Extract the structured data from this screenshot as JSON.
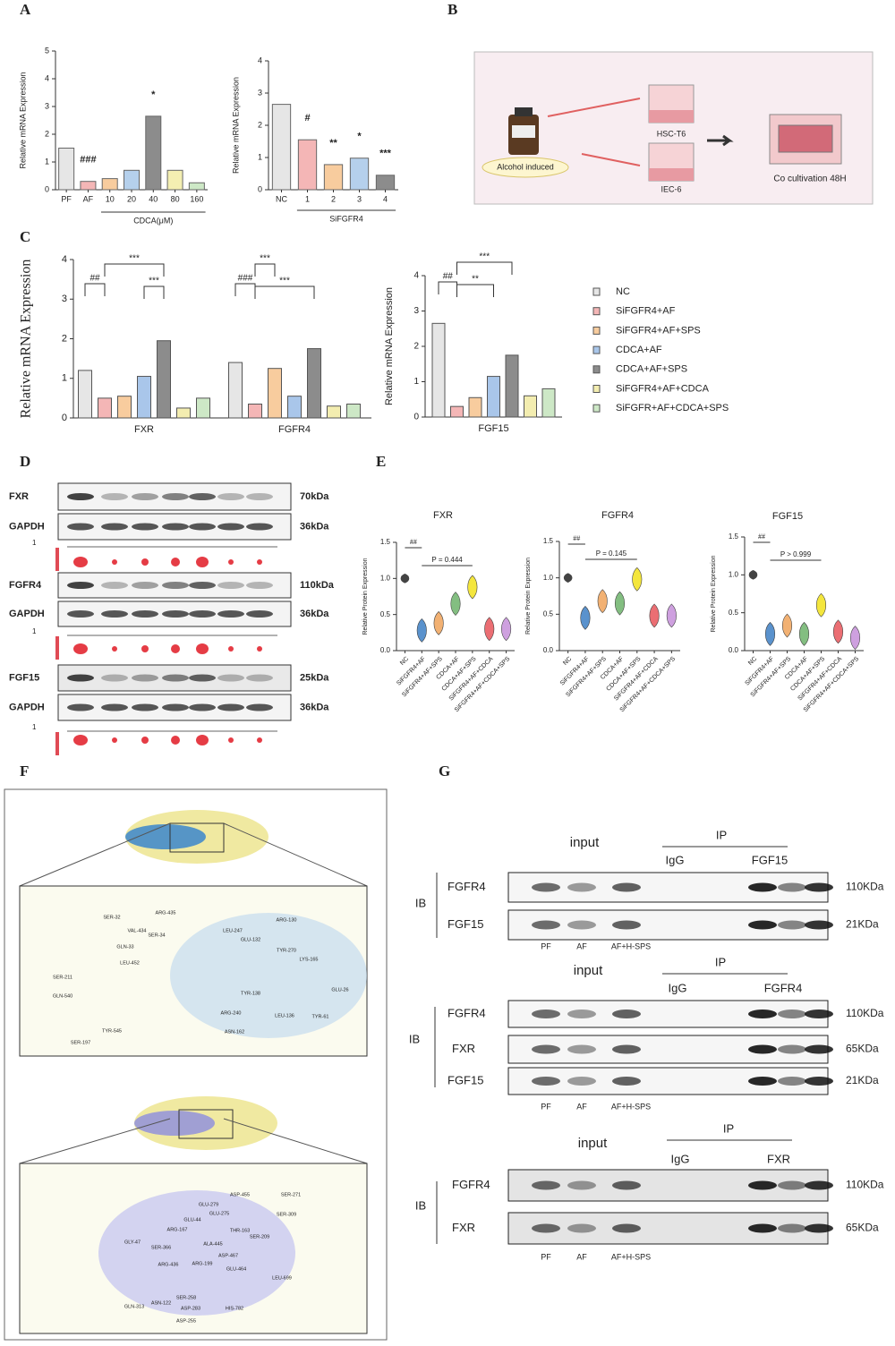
{
  "panel_labels": [
    "A",
    "B",
    "C",
    "D",
    "E",
    "F",
    "G"
  ],
  "chart_data": [
    {
      "type": "bar",
      "y_label": "Relative mRNA Expression",
      "categories": [
        "PF",
        "AF",
        "10",
        "20",
        "40",
        "80",
        "160"
      ],
      "values": [
        1.5,
        0.3,
        0.4,
        0.7,
        2.65,
        0.7,
        0.25
      ],
      "colors": [
        "#e6e6e6",
        "#f4b6b6",
        "#f8cc9e",
        "#b5d0ec",
        "#8c8c8c",
        "#f4efb2",
        "#cde8c6"
      ],
      "annotations": [
        null,
        "###",
        null,
        null,
        "*",
        null,
        null
      ],
      "x_group_label": "CDCA(μM)",
      "ylim": [
        0,
        5
      ],
      "yticks": [
        0,
        1,
        2,
        3,
        4,
        5
      ]
    },
    {
      "type": "bar",
      "y_label": "Relative mRNA Expression",
      "categories": [
        "NC",
        "1",
        "2",
        "3",
        "4"
      ],
      "values": [
        2.65,
        1.55,
        0.78,
        0.98,
        0.45
      ],
      "colors": [
        "#e6e6e6",
        "#f4b6b6",
        "#f8cc9e",
        "#b5d0ec",
        "#8c8c8c"
      ],
      "annotations": [
        null,
        "#",
        "**",
        "*",
        "***"
      ],
      "x_group_label": "SiFGFR4",
      "ylim": [
        0,
        4
      ],
      "yticks": [
        0,
        1,
        2,
        3,
        4
      ]
    },
    {
      "type": "grouped_bar",
      "y_label": "Relative mRNA Expression",
      "categories": [
        "FXR",
        "FGFR4"
      ],
      "series": [
        {
          "color": "#e6e6e6",
          "values": [
            1.2,
            1.4
          ]
        },
        {
          "color": "#f4b6b6",
          "values": [
            0.5,
            0.35
          ]
        },
        {
          "color": "#f8cc9e",
          "values": [
            0.55,
            1.25
          ]
        },
        {
          "color": "#a9c6ea",
          "values": [
            1.05,
            0.55
          ]
        },
        {
          "color": "#8c8c8c",
          "values": [
            1.95,
            1.75
          ]
        },
        {
          "color": "#f3edb0",
          "values": [
            0.25,
            0.3
          ]
        },
        {
          "color": "#cde8c6",
          "values": [
            0.5,
            0.35
          ]
        }
      ],
      "annotations": [
        "##",
        "***",
        "***",
        "###",
        "***",
        "***"
      ],
      "ylim": [
        0,
        4
      ],
      "yticks": [
        0,
        1,
        2,
        3,
        4
      ]
    },
    {
      "type": "grouped_bar",
      "y_label": "Relative mRNA Expression",
      "categories": [
        "FGF15"
      ],
      "series": [
        {
          "name": "NC",
          "color": "#e6e6e6",
          "values": [
            2.65
          ]
        },
        {
          "name": "SiFGFR4+AF",
          "color": "#f4b6b6",
          "values": [
            0.3
          ]
        },
        {
          "name": "SiFGFR4+AF+SPS",
          "color": "#f8cc9e",
          "values": [
            0.55
          ]
        },
        {
          "name": "CDCA+AF",
          "color": "#a9c6ea",
          "values": [
            1.15
          ]
        },
        {
          "name": "CDCA+AF+SPS",
          "color": "#8c8c8c",
          "values": [
            1.75
          ]
        },
        {
          "name": "SiFGFR4+AF+CDCA",
          "color": "#f3edb0",
          "values": [
            0.6
          ]
        },
        {
          "name": "SiFGFR+AF+CDCA+SPS",
          "color": "#cde8c6",
          "values": [
            0.8
          ]
        }
      ],
      "annotations": [
        "##",
        "**",
        "***"
      ],
      "legend": "right",
      "ylim": [
        0,
        4
      ],
      "yticks": [
        0,
        1,
        2,
        3,
        4
      ]
    },
    {
      "type": "violin",
      "title": "FXR",
      "y_label": "Relative Protein Expression",
      "categories": [
        "NC",
        "SiFGFR4+AF",
        "SiFGFR4+AF+SPS",
        "CDCA+AF",
        "CDCA+AF+SPS",
        "SiFGFR4+AF+CDCA",
        "SiFGFR4+AF+CDCA+SPS"
      ],
      "values": [
        1.0,
        0.28,
        0.38,
        0.65,
        0.88,
        0.3,
        0.3
      ],
      "colors": [
        "#222222",
        "#3d7fc4",
        "#f0a35a",
        "#6db36b",
        "#f2e21b",
        "#e8555a",
        "#c58fd9"
      ],
      "annotations": [
        "##",
        "P = 0.444"
      ],
      "ylim": [
        0,
        1.5
      ],
      "yticks": [
        {
          "value": 0,
          "label": "0.0"
        },
        {
          "value": 0.5,
          "label": "0.5"
        },
        {
          "value": 1,
          "label": "1.0"
        },
        {
          "value": 1.5,
          "label": "1.5"
        }
      ]
    },
    {
      "type": "violin",
      "title": "FGFR4",
      "y_label": "Relative Protein Expression",
      "categories": [
        "NC",
        "SiFGFR4+AF",
        "SiFGFR4+AF+SPS",
        "CDCA+AF",
        "CDCA+AF+SPS",
        "SiFGFR4+AF+CDCA",
        "SiFGFR4+AF+CDCA+SPS"
      ],
      "values": [
        1.0,
        0.45,
        0.68,
        0.65,
        0.98,
        0.48,
        0.48
      ],
      "colors": [
        "#222222",
        "#3d7fc4",
        "#f0a35a",
        "#6db36b",
        "#f2e21b",
        "#e8555a",
        "#c58fd9"
      ],
      "annotations": [
        "##",
        "P = 0.145"
      ],
      "ylim": [
        0,
        1.5
      ],
      "yticks": [
        {
          "value": 0,
          "label": "0.0"
        },
        {
          "value": 0.5,
          "label": "0.5"
        },
        {
          "value": 1,
          "label": "1.0"
        },
        {
          "value": 1.5,
          "label": "1.5"
        }
      ]
    },
    {
      "type": "violin",
      "title": "FGF15",
      "y_label": "Relative Protein Expression",
      "categories": [
        "NC",
        "SiFGFR4+AF",
        "SiFGFR4+AF+SPS",
        "CDCA+AF",
        "CDCA+AF+SPS",
        "SiFGFR4+AF+CDCA",
        "SiFGFR4+AF+CDCA+SPS"
      ],
      "values": [
        1.0,
        0.22,
        0.33,
        0.22,
        0.6,
        0.25,
        0.17
      ],
      "colors": [
        "#222222",
        "#3d7fc4",
        "#f0a35a",
        "#6db36b",
        "#f2e21b",
        "#e8555a",
        "#c58fd9"
      ],
      "annotations": [
        "##",
        "P > 0.999"
      ],
      "ylim": [
        0,
        1.5
      ],
      "yticks": [
        {
          "value": 0,
          "label": "0.0"
        },
        {
          "value": 0.5,
          "label": "0.5"
        },
        {
          "value": 1,
          "label": "1.0"
        },
        {
          "value": 1.5,
          "label": "1.5"
        }
      ]
    }
  ],
  "panel_b": {
    "reagent": "Alcohol induced",
    "upper_cell": "HSC-T6",
    "lower_cell": "IEC-6",
    "result": "Co cultivation 48H"
  },
  "panel_d": {
    "rows": [
      {
        "protein": "FXR",
        "size": "70kDa"
      },
      {
        "protein": "GAPDH",
        "size": "36kDa"
      },
      {
        "protein": "FGFR4",
        "size": "110kDa"
      },
      {
        "protein": "GAPDH",
        "size": "36kDa"
      },
      {
        "protein": "FGF15",
        "size": "25kDa"
      },
      {
        "protein": "GAPDH",
        "size": "36kDa"
      }
    ],
    "scale_labels": [
      "1",
      "1",
      "1"
    ]
  },
  "panel_f": {
    "upper_residues": [
      "SER-32",
      "ARG-435",
      "VAL-434",
      "SER-34",
      "GLN-33",
      "SER-211",
      "LEU-452",
      "GLN-540",
      "TYR-545",
      "SER-197",
      "LEU-247",
      "ARG-130",
      "GLU-132",
      "TYR-270",
      "LYS-165",
      "GLU-26",
      "TYR-138",
      "ARG-240",
      "LEU-136",
      "TYR-61",
      "ASN-162"
    ],
    "lower_residues": [
      "ASP-455",
      "SER-271",
      "GLU-279",
      "GLU-275",
      "SER-309",
      "GLU-44",
      "ARG-167",
      "THR-163",
      "GLY-47",
      "SER-366",
      "ALA-445",
      "SER-209",
      "ASP-467",
      "ARG-436",
      "ARG-199",
      "GLU-464",
      "LEU-699",
      "SER-258",
      "GLN-313",
      "ASN-122",
      "ASP-283",
      "HIS-782",
      "ASP-255"
    ]
  },
  "panel_g": {
    "blocks": [
      {
        "input": "input",
        "ip": "IP",
        "igg": "IgG",
        "ip_target": "FGF15",
        "ib": "IB",
        "rows": [
          {
            "protein": "FGFR4",
            "size": "110KDa"
          },
          {
            "protein": "FGF15",
            "size": "21KDa"
          }
        ],
        "lanes": [
          "PF",
          "AF",
          "AF+H-SPS"
        ]
      },
      {
        "input": "input",
        "ip": "IP",
        "igg": "IgG",
        "ip_target": "FGFR4",
        "ib": "IB",
        "rows": [
          {
            "protein": "FGFR4",
            "size": "110KDa"
          },
          {
            "protein": "FXR",
            "size": "65KDa"
          },
          {
            "protein": "FGF15",
            "size": "21KDa"
          }
        ],
        "lanes": [
          "PF",
          "AF",
          "AF+H-SPS"
        ]
      },
      {
        "input": "input",
        "ip": "IP",
        "igg": "IgG",
        "ip_target": "FXR",
        "ib": "IB",
        "rows": [
          {
            "protein": "FGFR4",
            "size": "110KDa"
          },
          {
            "protein": "FXR",
            "size": "65KDa"
          }
        ],
        "lanes": [
          "PF",
          "AF",
          "AF+H-SPS"
        ]
      }
    ]
  }
}
